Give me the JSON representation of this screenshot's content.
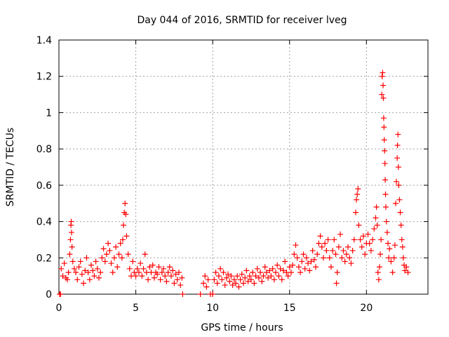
{
  "chart_data": {
    "type": "scatter",
    "title": "Day 044 of 2016, SRMTID for receiver lveg",
    "xlabel": "GPS time / hours",
    "ylabel": "SRMTID / TECUs",
    "xlim": [
      0,
      24
    ],
    "ylim": [
      0,
      1.4
    ],
    "x_ticks": [
      0,
      5,
      10,
      15,
      20
    ],
    "y_ticks": [
      0,
      0.2,
      0.4,
      0.6,
      0.8,
      1,
      1.2,
      1.4
    ],
    "x_tick_labels": [
      "0",
      "5",
      "10",
      "15",
      "20"
    ],
    "y_tick_labels": [
      "0",
      "0.2",
      "0.4",
      "0.6",
      "0.8",
      "1",
      "1.2",
      "1.4"
    ],
    "grid": true,
    "marker": "plus",
    "series": [
      {
        "name": "SRMTID",
        "color": "#ff0000",
        "points": [
          [
            0.05,
            0.0
          ],
          [
            0.1,
            0.0
          ],
          [
            0.15,
            0.14
          ],
          [
            0.25,
            0.1
          ],
          [
            0.35,
            0.17
          ],
          [
            0.45,
            0.09
          ],
          [
            0.55,
            0.08
          ],
          [
            0.62,
            0.12
          ],
          [
            0.7,
            0.22
          ],
          [
            0.75,
            0.3
          ],
          [
            0.78,
            0.38
          ],
          [
            0.8,
            0.4
          ],
          [
            0.82,
            0.34
          ],
          [
            0.85,
            0.26
          ],
          [
            0.9,
            0.18
          ],
          [
            1.0,
            0.14
          ],
          [
            1.1,
            0.12
          ],
          [
            1.2,
            0.08
          ],
          [
            1.3,
            0.15
          ],
          [
            1.4,
            0.18
          ],
          [
            1.5,
            0.11
          ],
          [
            1.6,
            0.06
          ],
          [
            1.7,
            0.13
          ],
          [
            1.8,
            0.2
          ],
          [
            1.9,
            0.12
          ],
          [
            2.0,
            0.08
          ],
          [
            2.1,
            0.16
          ],
          [
            2.2,
            0.13
          ],
          [
            2.3,
            0.1
          ],
          [
            2.4,
            0.18
          ],
          [
            2.5,
            0.14
          ],
          [
            2.6,
            0.09
          ],
          [
            2.7,
            0.12
          ],
          [
            2.8,
            0.2
          ],
          [
            2.9,
            0.25
          ],
          [
            3.0,
            0.18
          ],
          [
            3.1,
            0.22
          ],
          [
            3.2,
            0.28
          ],
          [
            3.3,
            0.24
          ],
          [
            3.4,
            0.17
          ],
          [
            3.5,
            0.12
          ],
          [
            3.6,
            0.2
          ],
          [
            3.7,
            0.26
          ],
          [
            3.8,
            0.15
          ],
          [
            3.9,
            0.22
          ],
          [
            4.0,
            0.28
          ],
          [
            4.1,
            0.2
          ],
          [
            4.15,
            0.3
          ],
          [
            4.2,
            0.38
          ],
          [
            4.25,
            0.45
          ],
          [
            4.3,
            0.5
          ],
          [
            4.35,
            0.44
          ],
          [
            4.4,
            0.32
          ],
          [
            4.5,
            0.22
          ],
          [
            4.6,
            0.14
          ],
          [
            4.7,
            0.1
          ],
          [
            4.8,
            0.18
          ],
          [
            4.9,
            0.12
          ],
          [
            5.0,
            0.1
          ],
          [
            5.1,
            0.14
          ],
          [
            5.2,
            0.12
          ],
          [
            5.3,
            0.17
          ],
          [
            5.4,
            0.1
          ],
          [
            5.5,
            0.14
          ],
          [
            5.6,
            0.22
          ],
          [
            5.7,
            0.12
          ],
          [
            5.8,
            0.08
          ],
          [
            5.9,
            0.15
          ],
          [
            6.0,
            0.12
          ],
          [
            6.1,
            0.16
          ],
          [
            6.2,
            0.09
          ],
          [
            6.3,
            0.12
          ],
          [
            6.4,
            0.11
          ],
          [
            6.5,
            0.15
          ],
          [
            6.6,
            0.08
          ],
          [
            6.7,
            0.12
          ],
          [
            6.8,
            0.14
          ],
          [
            6.9,
            0.1
          ],
          [
            7.0,
            0.07
          ],
          [
            7.1,
            0.12
          ],
          [
            7.2,
            0.15
          ],
          [
            7.3,
            0.1
          ],
          [
            7.4,
            0.13
          ],
          [
            7.5,
            0.06
          ],
          [
            7.6,
            0.11
          ],
          [
            7.7,
            0.08
          ],
          [
            7.8,
            0.12
          ],
          [
            7.9,
            0.05
          ],
          [
            8.0,
            0.09
          ],
          [
            8.05,
            0.0
          ],
          [
            9.2,
            0.0
          ],
          [
            9.4,
            0.06
          ],
          [
            9.5,
            0.1
          ],
          [
            9.6,
            0.04
          ],
          [
            9.7,
            0.08
          ],
          [
            9.85,
            0.0
          ],
          [
            10.0,
            0.0
          ],
          [
            10.1,
            0.08
          ],
          [
            10.2,
            0.12
          ],
          [
            10.3,
            0.06
          ],
          [
            10.4,
            0.1
          ],
          [
            10.5,
            0.14
          ],
          [
            10.6,
            0.08
          ],
          [
            10.7,
            0.12
          ],
          [
            10.8,
            0.05
          ],
          [
            10.9,
            0.09
          ],
          [
            11.0,
            0.11
          ],
          [
            11.1,
            0.07
          ],
          [
            11.2,
            0.1
          ],
          [
            11.3,
            0.05
          ],
          [
            11.4,
            0.08
          ],
          [
            11.5,
            0.06
          ],
          [
            11.6,
            0.1
          ],
          [
            11.7,
            0.04
          ],
          [
            11.8,
            0.08
          ],
          [
            11.9,
            0.11
          ],
          [
            12.0,
            0.06
          ],
          [
            12.1,
            0.09
          ],
          [
            12.2,
            0.13
          ],
          [
            12.3,
            0.07
          ],
          [
            12.4,
            0.1
          ],
          [
            12.5,
            0.08
          ],
          [
            12.6,
            0.12
          ],
          [
            12.7,
            0.06
          ],
          [
            12.8,
            0.1
          ],
          [
            12.9,
            0.14
          ],
          [
            13.0,
            0.09
          ],
          [
            13.1,
            0.12
          ],
          [
            13.2,
            0.07
          ],
          [
            13.3,
            0.1
          ],
          [
            13.4,
            0.15
          ],
          [
            13.5,
            0.12
          ],
          [
            13.6,
            0.09
          ],
          [
            13.7,
            0.13
          ],
          [
            13.8,
            0.1
          ],
          [
            13.9,
            0.14
          ],
          [
            14.0,
            0.08
          ],
          [
            14.1,
            0.12
          ],
          [
            14.2,
            0.16
          ],
          [
            14.3,
            0.1
          ],
          [
            14.4,
            0.14
          ],
          [
            14.5,
            0.08
          ],
          [
            14.6,
            0.13
          ],
          [
            14.7,
            0.18
          ],
          [
            14.8,
            0.12
          ],
          [
            14.9,
            0.1
          ],
          [
            15.0,
            0.15
          ],
          [
            15.1,
            0.12
          ],
          [
            15.2,
            0.16
          ],
          [
            15.3,
            0.22
          ],
          [
            15.4,
            0.27
          ],
          [
            15.5,
            0.2
          ],
          [
            15.6,
            0.15
          ],
          [
            15.7,
            0.12
          ],
          [
            15.8,
            0.18
          ],
          [
            15.9,
            0.22
          ],
          [
            16.0,
            0.14
          ],
          [
            16.1,
            0.2
          ],
          [
            16.2,
            0.17
          ],
          [
            16.3,
            0.13
          ],
          [
            16.4,
            0.18
          ],
          [
            16.5,
            0.24
          ],
          [
            16.6,
            0.19
          ],
          [
            16.7,
            0.15
          ],
          [
            16.8,
            0.22
          ],
          [
            16.9,
            0.28
          ],
          [
            17.0,
            0.32
          ],
          [
            17.1,
            0.26
          ],
          [
            17.2,
            0.2
          ],
          [
            17.3,
            0.28
          ],
          [
            17.4,
            0.24
          ],
          [
            17.5,
            0.3
          ],
          [
            17.6,
            0.2
          ],
          [
            17.7,
            0.15
          ],
          [
            17.8,
            0.24
          ],
          [
            17.9,
            0.3
          ],
          [
            18.0,
            0.22
          ],
          [
            18.05,
            0.06
          ],
          [
            18.1,
            0.12
          ],
          [
            18.2,
            0.26
          ],
          [
            18.3,
            0.33
          ],
          [
            18.4,
            0.2
          ],
          [
            18.5,
            0.24
          ],
          [
            18.6,
            0.18
          ],
          [
            18.7,
            0.22
          ],
          [
            18.8,
            0.26
          ],
          [
            18.9,
            0.2
          ],
          [
            19.0,
            0.17
          ],
          [
            19.1,
            0.24
          ],
          [
            19.2,
            0.3
          ],
          [
            19.3,
            0.45
          ],
          [
            19.35,
            0.52
          ],
          [
            19.4,
            0.55
          ],
          [
            19.45,
            0.58
          ],
          [
            19.5,
            0.38
          ],
          [
            19.6,
            0.3
          ],
          [
            19.7,
            0.26
          ],
          [
            19.8,
            0.32
          ],
          [
            19.9,
            0.22
          ],
          [
            20.0,
            0.28
          ],
          [
            20.1,
            0.33
          ],
          [
            20.2,
            0.28
          ],
          [
            20.3,
            0.24
          ],
          [
            20.4,
            0.3
          ],
          [
            20.5,
            0.36
          ],
          [
            20.6,
            0.42
          ],
          [
            20.65,
            0.48
          ],
          [
            20.7,
            0.38
          ],
          [
            20.75,
            0.12
          ],
          [
            20.8,
            0.08
          ],
          [
            20.85,
            0.15
          ],
          [
            20.9,
            0.22
          ],
          [
            20.95,
            0.3
          ],
          [
            21.0,
            1.1
          ],
          [
            21.02,
            1.2
          ],
          [
            21.05,
            1.22
          ],
          [
            21.08,
            1.15
          ],
          [
            21.1,
            1.08
          ],
          [
            21.12,
            0.97
          ],
          [
            21.14,
            0.92
          ],
          [
            21.16,
            0.85
          ],
          [
            21.18,
            0.79
          ],
          [
            21.2,
            0.72
          ],
          [
            21.22,
            0.63
          ],
          [
            21.24,
            0.55
          ],
          [
            21.26,
            0.48
          ],
          [
            21.3,
            0.4
          ],
          [
            21.35,
            0.34
          ],
          [
            21.4,
            0.28
          ],
          [
            21.45,
            0.2
          ],
          [
            21.5,
            0.25
          ],
          [
            21.6,
            0.18
          ],
          [
            21.7,
            0.12
          ],
          [
            21.8,
            0.2
          ],
          [
            21.85,
            0.27
          ],
          [
            21.9,
            0.5
          ],
          [
            21.95,
            0.62
          ],
          [
            22.0,
            0.75
          ],
          [
            22.02,
            0.82
          ],
          [
            22.05,
            0.88
          ],
          [
            22.08,
            0.7
          ],
          [
            22.1,
            0.6
          ],
          [
            22.15,
            0.52
          ],
          [
            22.2,
            0.45
          ],
          [
            22.25,
            0.38
          ],
          [
            22.3,
            0.3
          ],
          [
            22.35,
            0.26
          ],
          [
            22.4,
            0.2
          ],
          [
            22.45,
            0.16
          ],
          [
            22.5,
            0.13
          ],
          [
            22.6,
            0.15
          ],
          [
            22.7,
            0.12
          ]
        ]
      }
    ]
  }
}
